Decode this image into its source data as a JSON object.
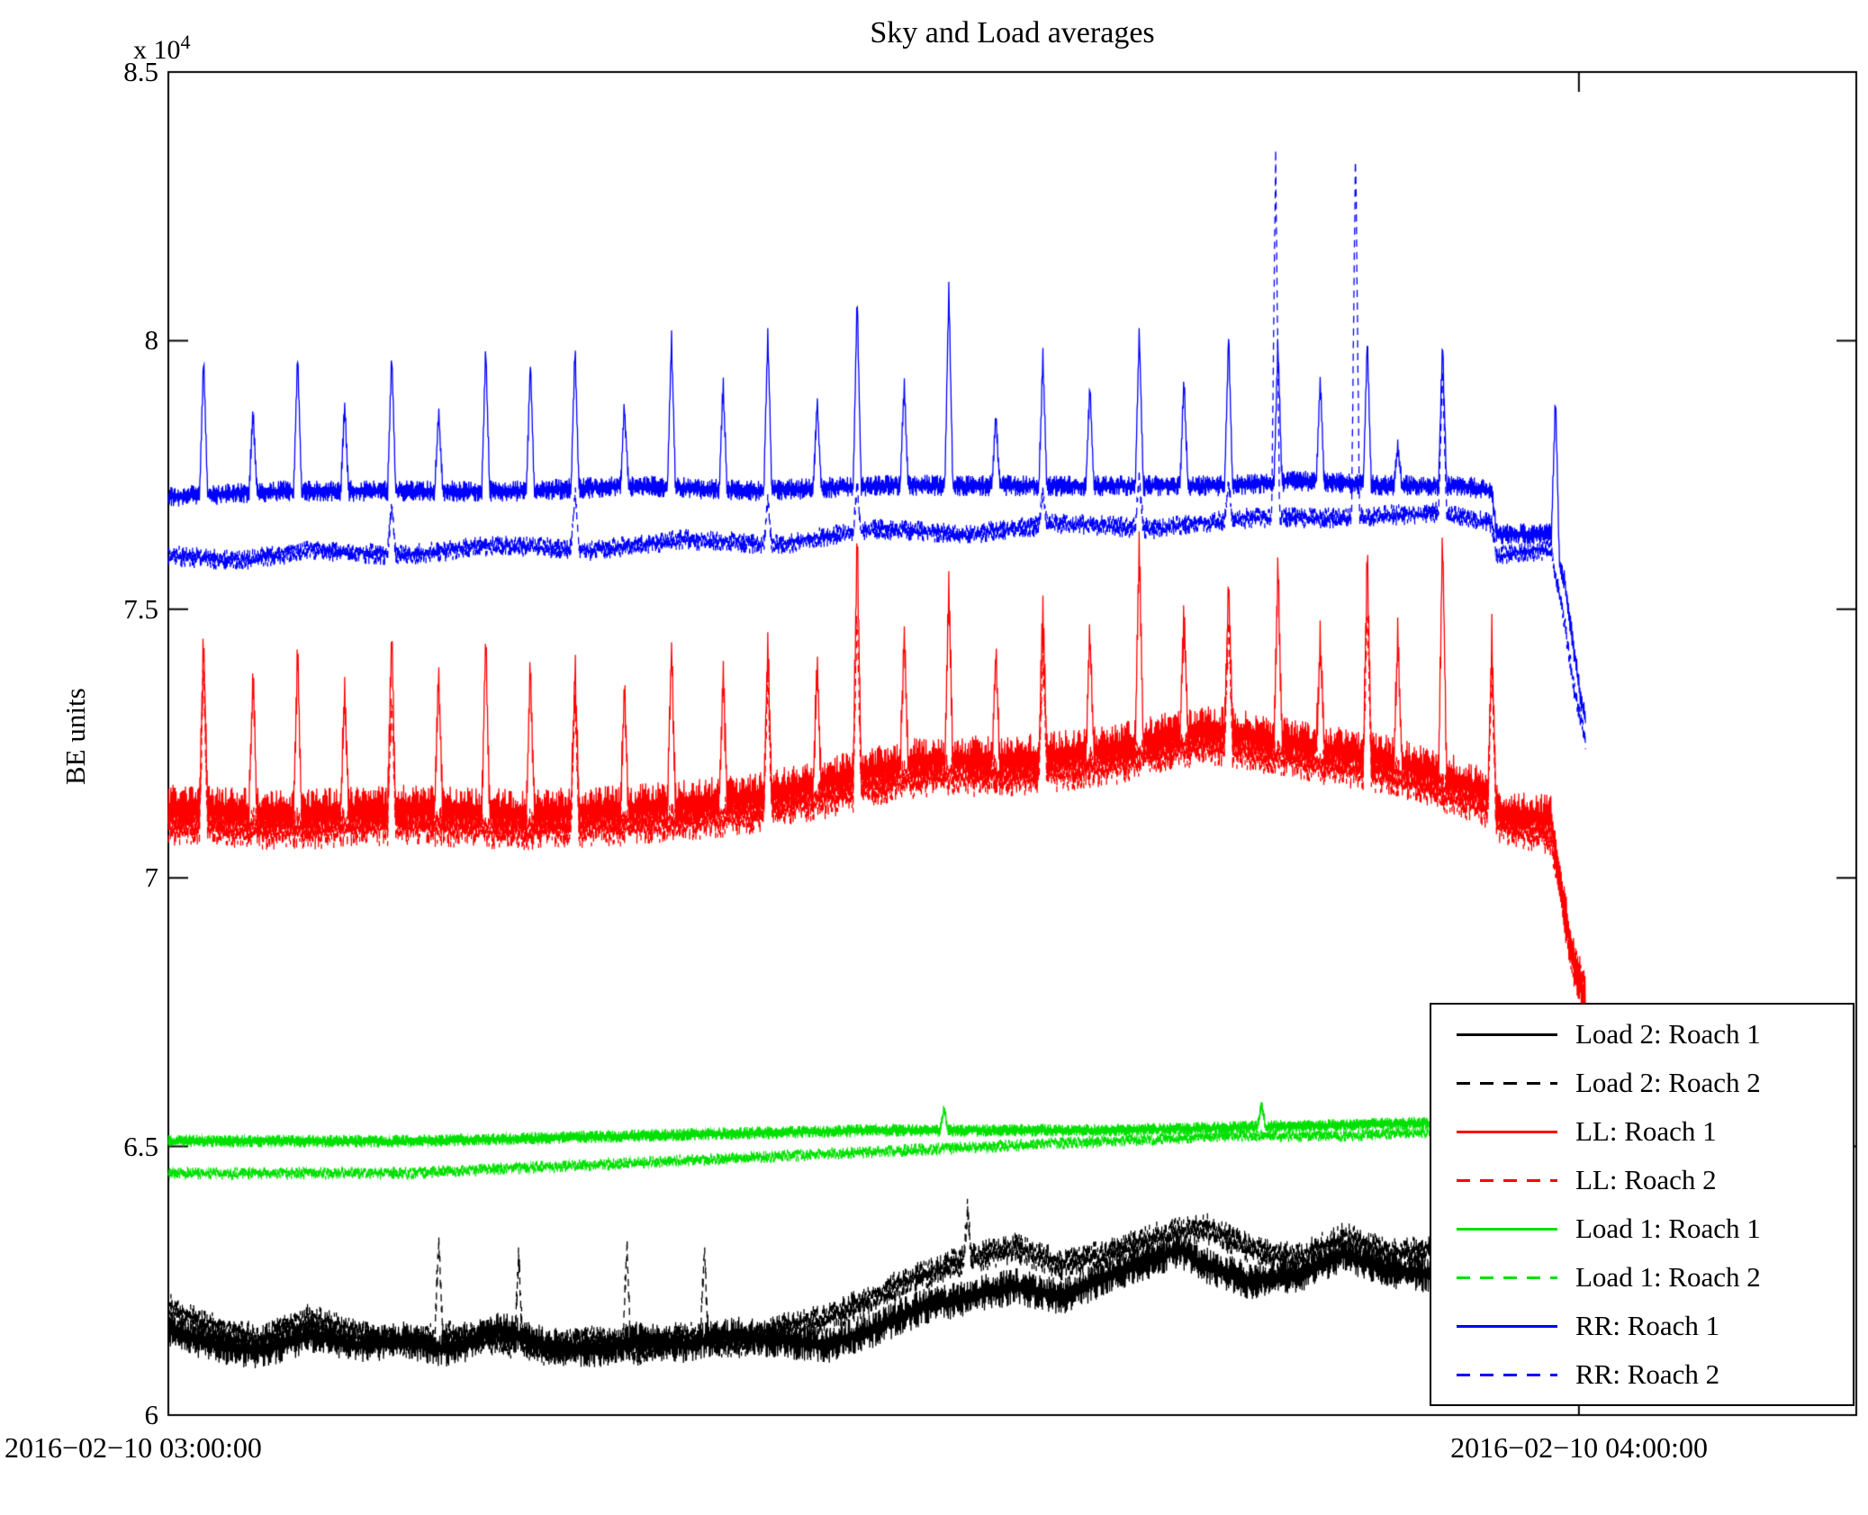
{
  "figure": {
    "title": "Sky and Load averages"
  },
  "axes": {
    "ylabel": "BE units",
    "y_multiplier": "x 10",
    "y_multiplier_exponent": "4",
    "ytick_labels": [
      "6",
      "6.5",
      "7",
      "7.5",
      "8",
      "8.5"
    ],
    "xtick_labels": [
      "2016−02−10 03:00:00",
      "2016−02−10 04:00:00"
    ]
  },
  "legend": {
    "entries": [
      {
        "label": "Load 2: Roach 1",
        "color": "#000000",
        "line_style": "solid",
        "swatch_style": "background:#000000"
      },
      {
        "label": "Load 2: Roach 2",
        "color": "#000000",
        "line_style": "dashed",
        "swatch_style": "background:repeating-linear-gradient(90deg,#000000 0 15px,transparent 15px 26px)"
      },
      {
        "label": "LL: Roach 1",
        "color": "#ff0000",
        "line_style": "solid",
        "swatch_style": "background:#ff0000"
      },
      {
        "label": "LL: Roach 2",
        "color": "#ff0000",
        "line_style": "dashed",
        "swatch_style": "background:repeating-linear-gradient(90deg,#ff0000 0 15px,transparent 15px 26px)"
      },
      {
        "label": "Load 1: Roach 1",
        "color": "#00e000",
        "line_style": "solid",
        "swatch_style": "background:#00e000"
      },
      {
        "label": "Load 1: Roach 2",
        "color": "#00e000",
        "line_style": "dashed",
        "swatch_style": "background:repeating-linear-gradient(90deg,#00e000 0 15px,transparent 15px 26px)"
      },
      {
        "label": "RR: Roach 1",
        "color": "#0000ff",
        "line_style": "solid",
        "swatch_style": "background:#0000ff"
      },
      {
        "label": "RR: Roach 2",
        "color": "#0000ff",
        "line_style": "dashed",
        "swatch_style": "background:repeating-linear-gradient(90deg,#0000ff 0 15px,transparent 15px 26px)"
      }
    ]
  },
  "chart_data": {
    "type": "line",
    "title": "Sky and Load averages",
    "xlabel": "",
    "ylabel": "BE units",
    "y_scale_note": "values in units of 1e4 BE units",
    "x_unit": "minutes after 2016-02-10 03:00:00",
    "x_range": [
      0,
      71.8
    ],
    "y_range": [
      6,
      8.5
    ],
    "grid": false,
    "legend_position": "lower right",
    "xticks": [
      {
        "value": 0,
        "label": "2016−02−10 03:00:00"
      },
      {
        "value": 60,
        "label": "2016−02−10 04:00:00"
      }
    ],
    "yticks": [
      6,
      6.5,
      7,
      7.5,
      8,
      8.5
    ],
    "series": [
      {
        "name": "Load 2: Roach 1",
        "color": "#000000",
        "dash": false,
        "band": 0.035,
        "seed": 11,
        "baseline": [
          [
            0,
            6.16
          ],
          [
            2,
            6.13
          ],
          [
            4,
            6.12
          ],
          [
            6,
            6.15
          ],
          [
            8,
            6.13
          ],
          [
            10,
            6.14
          ],
          [
            12,
            6.12
          ],
          [
            14,
            6.16
          ],
          [
            16,
            6.13
          ],
          [
            18,
            6.12
          ],
          [
            20,
            6.14
          ],
          [
            22,
            6.13
          ],
          [
            24,
            6.15
          ],
          [
            26,
            6.14
          ],
          [
            28,
            6.13
          ],
          [
            30,
            6.16
          ],
          [
            32,
            6.2
          ],
          [
            34,
            6.22
          ],
          [
            36,
            6.24
          ],
          [
            38,
            6.22
          ],
          [
            40,
            6.26
          ],
          [
            42,
            6.29
          ],
          [
            43,
            6.31
          ],
          [
            44,
            6.28
          ],
          [
            46,
            6.25
          ],
          [
            48,
            6.26
          ],
          [
            50,
            6.3
          ],
          [
            52,
            6.27
          ],
          [
            54,
            6.26
          ],
          [
            56,
            6.24
          ],
          [
            58,
            6.25
          ],
          [
            60,
            6.24
          ]
        ],
        "spikes": []
      },
      {
        "name": "Load 2: Roach 2",
        "color": "#000000",
        "dash": true,
        "band": 0.03,
        "seed": 22,
        "baseline": [
          [
            0,
            6.2
          ],
          [
            2,
            6.16
          ],
          [
            4,
            6.14
          ],
          [
            6,
            6.18
          ],
          [
            8,
            6.15
          ],
          [
            10,
            6.13
          ],
          [
            12,
            6.15
          ],
          [
            14,
            6.14
          ],
          [
            16,
            6.12
          ],
          [
            18,
            6.14
          ],
          [
            20,
            6.12
          ],
          [
            22,
            6.15
          ],
          [
            24,
            6.13
          ],
          [
            26,
            6.16
          ],
          [
            28,
            6.18
          ],
          [
            30,
            6.22
          ],
          [
            32,
            6.26
          ],
          [
            34,
            6.29
          ],
          [
            36,
            6.31
          ],
          [
            38,
            6.28
          ],
          [
            40,
            6.3
          ],
          [
            42,
            6.33
          ],
          [
            44,
            6.35
          ],
          [
            46,
            6.31
          ],
          [
            48,
            6.29
          ],
          [
            50,
            6.33
          ],
          [
            52,
            6.3
          ],
          [
            54,
            6.31
          ],
          [
            56,
            6.28
          ],
          [
            58,
            6.3
          ],
          [
            60,
            6.28
          ]
        ],
        "spikes": [
          [
            11.5,
            6.33
          ],
          [
            14.9,
            6.3
          ],
          [
            19.5,
            6.32
          ],
          [
            22.8,
            6.31
          ],
          [
            34.0,
            6.38
          ]
        ]
      },
      {
        "name": "LL: Roach 1",
        "color": "#ff0000",
        "dash": false,
        "band": 0.045,
        "seed": 33,
        "baseline": [
          [
            0,
            7.13
          ],
          [
            5,
            7.12
          ],
          [
            10,
            7.13
          ],
          [
            15,
            7.12
          ],
          [
            20,
            7.13
          ],
          [
            25,
            7.15
          ],
          [
            28,
            7.18
          ],
          [
            32,
            7.22
          ],
          [
            36,
            7.22
          ],
          [
            40,
            7.24
          ],
          [
            44,
            7.28
          ],
          [
            48,
            7.25
          ],
          [
            52,
            7.22
          ],
          [
            55,
            7.18
          ],
          [
            56.4,
            7.15
          ],
          [
            56.6,
            7.12
          ],
          [
            58.8,
            7.11
          ],
          [
            59.2,
            7.0
          ],
          [
            59.6,
            6.88
          ],
          [
            60.0,
            6.8
          ],
          [
            60.3,
            6.78
          ]
        ],
        "spikes": [
          [
            1.5,
            7.45
          ],
          [
            3.6,
            7.38
          ],
          [
            5.5,
            7.42
          ],
          [
            7.5,
            7.35
          ],
          [
            9.5,
            7.46
          ],
          [
            11.5,
            7.38
          ],
          [
            13.5,
            7.45
          ],
          [
            15.4,
            7.4
          ],
          [
            17.3,
            7.4
          ],
          [
            19.4,
            7.36
          ],
          [
            21.4,
            7.44
          ],
          [
            23.6,
            7.38
          ],
          [
            25.5,
            7.44
          ],
          [
            27.6,
            7.4
          ],
          [
            29.3,
            7.65
          ],
          [
            31.3,
            7.45
          ],
          [
            33.2,
            7.55
          ],
          [
            35.2,
            7.42
          ],
          [
            37.2,
            7.5
          ],
          [
            39.2,
            7.45
          ],
          [
            41.3,
            7.62
          ],
          [
            43.2,
            7.48
          ],
          [
            45.1,
            7.55
          ],
          [
            47.2,
            7.58
          ],
          [
            49.0,
            7.45
          ],
          [
            51.0,
            7.6
          ],
          [
            52.3,
            7.45
          ],
          [
            54.2,
            7.65
          ],
          [
            56.3,
            7.45
          ]
        ]
      },
      {
        "name": "LL: Roach 2",
        "color": "#ff0000",
        "dash": true,
        "band": 0.04,
        "seed": 44,
        "baseline": [
          [
            0,
            7.1
          ],
          [
            5,
            7.09
          ],
          [
            10,
            7.1
          ],
          [
            15,
            7.09
          ],
          [
            20,
            7.1
          ],
          [
            25,
            7.12
          ],
          [
            28,
            7.15
          ],
          [
            32,
            7.19
          ],
          [
            36,
            7.19
          ],
          [
            40,
            7.21
          ],
          [
            44,
            7.25
          ],
          [
            48,
            7.22
          ],
          [
            52,
            7.19
          ],
          [
            55,
            7.15
          ],
          [
            56.4,
            7.12
          ],
          [
            56.6,
            7.1
          ],
          [
            58.8,
            7.08
          ],
          [
            59.2,
            6.98
          ],
          [
            59.6,
            6.87
          ],
          [
            60.2,
            6.8
          ]
        ],
        "spikes": [
          [
            1.5,
            7.4
          ],
          [
            9.5,
            7.35
          ],
          [
            17.3,
            7.35
          ],
          [
            25.5,
            7.38
          ],
          [
            29.3,
            7.5
          ],
          [
            37.2,
            7.42
          ],
          [
            45.1,
            7.48
          ],
          [
            51.0,
            7.5
          ],
          [
            56.3,
            7.4
          ]
        ]
      },
      {
        "name": "Load 1: Roach 1",
        "color": "#00e000",
        "dash": false,
        "band": 0.012,
        "seed": 55,
        "baseline": [
          [
            0,
            6.51
          ],
          [
            10,
            6.51
          ],
          [
            20,
            6.52
          ],
          [
            30,
            6.53
          ],
          [
            40,
            6.53
          ],
          [
            50,
            6.54
          ],
          [
            60,
            6.55
          ]
        ],
        "spikes": [
          [
            33.0,
            6.57
          ],
          [
            46.5,
            6.58
          ]
        ]
      },
      {
        "name": "Load 1: Roach 2",
        "color": "#00e000",
        "dash": true,
        "band": 0.012,
        "seed": 66,
        "baseline": [
          [
            0,
            6.45
          ],
          [
            10,
            6.45
          ],
          [
            15,
            6.46
          ],
          [
            20,
            6.47
          ],
          [
            25,
            6.48
          ],
          [
            30,
            6.49
          ],
          [
            35,
            6.5
          ],
          [
            40,
            6.51
          ],
          [
            45,
            6.52
          ],
          [
            50,
            6.52
          ],
          [
            55,
            6.53
          ],
          [
            60,
            6.53
          ]
        ],
        "spikes": []
      },
      {
        "name": "RR: Roach 1",
        "color": "#0000ff",
        "dash": false,
        "band": 0.02,
        "seed": 77,
        "baseline": [
          [
            0,
            7.71
          ],
          [
            5,
            7.72
          ],
          [
            10,
            7.72
          ],
          [
            15,
            7.72
          ],
          [
            20,
            7.73
          ],
          [
            25,
            7.72
          ],
          [
            30,
            7.73
          ],
          [
            35,
            7.73
          ],
          [
            40,
            7.73
          ],
          [
            45,
            7.73
          ],
          [
            48,
            7.74
          ],
          [
            52,
            7.73
          ],
          [
            55,
            7.73
          ],
          [
            56.3,
            7.72
          ],
          [
            56.5,
            7.64
          ],
          [
            58.8,
            7.64
          ],
          [
            59.4,
            7.55
          ],
          [
            59.8,
            7.42
          ],
          [
            60.1,
            7.33
          ],
          [
            60.3,
            7.3
          ]
        ],
        "spikes": [
          [
            1.5,
            7.97
          ],
          [
            3.6,
            7.87
          ],
          [
            5.5,
            7.97
          ],
          [
            7.5,
            7.88
          ],
          [
            9.5,
            7.98
          ],
          [
            11.5,
            7.87
          ],
          [
            13.5,
            7.99
          ],
          [
            15.4,
            7.96
          ],
          [
            17.3,
            7.99
          ],
          [
            19.4,
            7.88
          ],
          [
            21.4,
            8.01
          ],
          [
            23.6,
            7.92
          ],
          [
            25.5,
            8.02
          ],
          [
            27.6,
            7.89
          ],
          [
            29.3,
            8.08
          ],
          [
            31.3,
            7.92
          ],
          [
            33.2,
            8.1
          ],
          [
            35.2,
            7.86
          ],
          [
            37.2,
            7.97
          ],
          [
            39.2,
            7.92
          ],
          [
            41.3,
            8.02
          ],
          [
            43.2,
            7.93
          ],
          [
            45.1,
            8.01
          ],
          [
            47.2,
            8.0
          ],
          [
            49.0,
            7.93
          ],
          [
            51.0,
            8.0
          ],
          [
            52.3,
            7.8
          ],
          [
            54.2,
            8.0
          ],
          [
            59.0,
            7.9
          ]
        ]
      },
      {
        "name": "RR: Roach 2",
        "color": "#0000ff",
        "dash": true,
        "band": 0.02,
        "seed": 88,
        "baseline": [
          [
            0,
            7.6
          ],
          [
            3,
            7.59
          ],
          [
            6,
            7.61
          ],
          [
            10,
            7.6
          ],
          [
            14,
            7.62
          ],
          [
            18,
            7.61
          ],
          [
            22,
            7.63
          ],
          [
            26,
            7.62
          ],
          [
            30,
            7.65
          ],
          [
            34,
            7.64
          ],
          [
            38,
            7.66
          ],
          [
            42,
            7.65
          ],
          [
            46,
            7.67
          ],
          [
            50,
            7.67
          ],
          [
            54,
            7.68
          ],
          [
            56.3,
            7.66
          ],
          [
            56.5,
            7.6
          ],
          [
            58.8,
            7.61
          ],
          [
            59.3,
            7.5
          ],
          [
            59.8,
            7.35
          ],
          [
            60.3,
            7.25
          ]
        ],
        "spikes": [
          [
            9.5,
            7.7
          ],
          [
            17.3,
            7.72
          ],
          [
            25.5,
            7.7
          ],
          [
            29.3,
            7.73
          ],
          [
            37.2,
            7.72
          ],
          [
            41.3,
            7.75
          ],
          [
            45.1,
            7.74
          ],
          [
            47.1,
            8.35
          ],
          [
            50.5,
            8.37
          ],
          [
            54.2,
            7.95
          ]
        ]
      }
    ]
  }
}
